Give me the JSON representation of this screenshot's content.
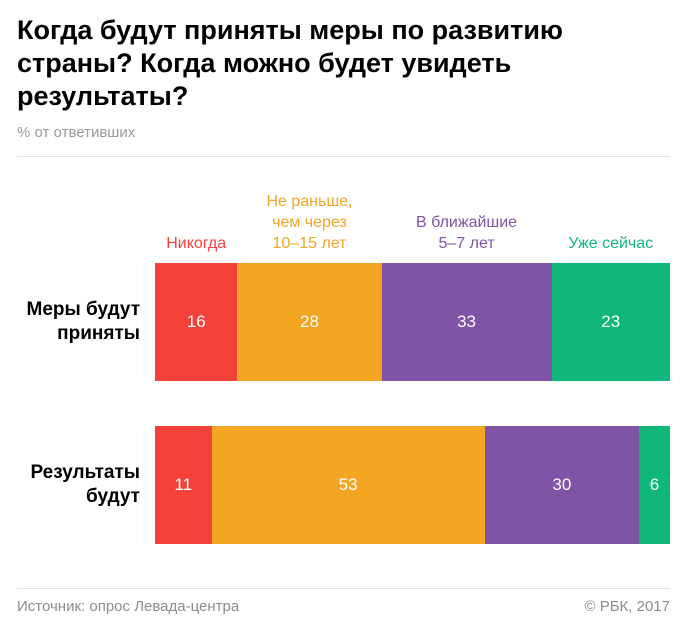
{
  "title": "Когда будут приняты меры по развитию\nстраны? Когда можно будет увидеть\nрезультаты?",
  "subtitle": "% от ответивших",
  "chart_data": {
    "type": "bar",
    "orientation": "horizontal",
    "stacked": true,
    "categories": [
      "Меры будут\nприняты",
      "Результаты\nбудут"
    ],
    "series": [
      {
        "name": "Никогда",
        "color": "#f4423b",
        "values": [
          16,
          11
        ]
      },
      {
        "name": "Не раньше,\nчем через\n10–15 лет",
        "color": "#f4a522",
        "values": [
          28,
          53
        ]
      },
      {
        "name": "В ближайшие\n5–7 лет",
        "color": "#7f53a6",
        "values": [
          33,
          30
        ]
      },
      {
        "name": "Уже сейчас",
        "color": "#10b77a",
        "values": [
          23,
          6
        ]
      }
    ],
    "xlim": [
      0,
      100
    ],
    "grid": false,
    "legend": "top"
  },
  "footer": {
    "source": "Источник: опрос Левада-центра",
    "copyright": "© РБК, 2017"
  }
}
